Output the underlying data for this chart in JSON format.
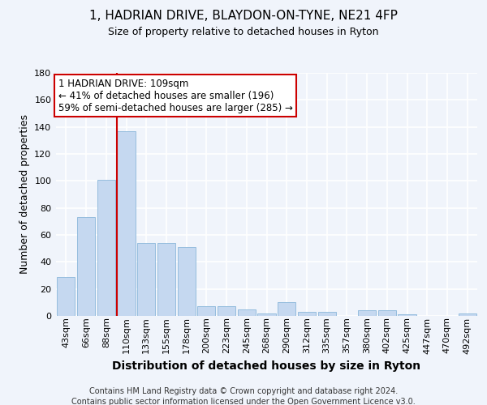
{
  "title": "1, HADRIAN DRIVE, BLAYDON-ON-TYNE, NE21 4FP",
  "subtitle": "Size of property relative to detached houses in Ryton",
  "xlabel": "Distribution of detached houses by size in Ryton",
  "ylabel": "Number of detached properties",
  "categories": [
    "43sqm",
    "66sqm",
    "88sqm",
    "110sqm",
    "133sqm",
    "155sqm",
    "178sqm",
    "200sqm",
    "223sqm",
    "245sqm",
    "268sqm",
    "290sqm",
    "312sqm",
    "335sqm",
    "357sqm",
    "380sqm",
    "402sqm",
    "425sqm",
    "447sqm",
    "470sqm",
    "492sqm"
  ],
  "values": [
    29,
    73,
    101,
    137,
    54,
    54,
    51,
    7,
    7,
    5,
    2,
    10,
    3,
    3,
    0,
    4,
    4,
    1,
    0,
    0,
    2
  ],
  "bar_color": "#c5d8f0",
  "bar_edge_color": "#7aadd4",
  "vline_x": 3,
  "vline_color": "#cc0000",
  "annotation_line1": "1 HADRIAN DRIVE: 109sqm",
  "annotation_line2": "← 41% of detached houses are smaller (196)",
  "annotation_line3": "59% of semi-detached houses are larger (285) →",
  "annotation_box_color": "#ffffff",
  "annotation_box_edge": "#cc0000",
  "ylim": [
    0,
    180
  ],
  "yticks": [
    0,
    20,
    40,
    60,
    80,
    100,
    120,
    140,
    160,
    180
  ],
  "bg_color": "#f0f4fb",
  "plot_bg_color": "#f0f4fb",
  "grid_color": "#ffffff",
  "footer_line1": "Contains HM Land Registry data © Crown copyright and database right 2024.",
  "footer_line2": "Contains public sector information licensed under the Open Government Licence v3.0.",
  "title_fontsize": 11,
  "subtitle_fontsize": 9,
  "xlabel_fontsize": 10,
  "ylabel_fontsize": 9,
  "tick_fontsize": 8,
  "annotation_fontsize": 8.5,
  "footer_fontsize": 7
}
